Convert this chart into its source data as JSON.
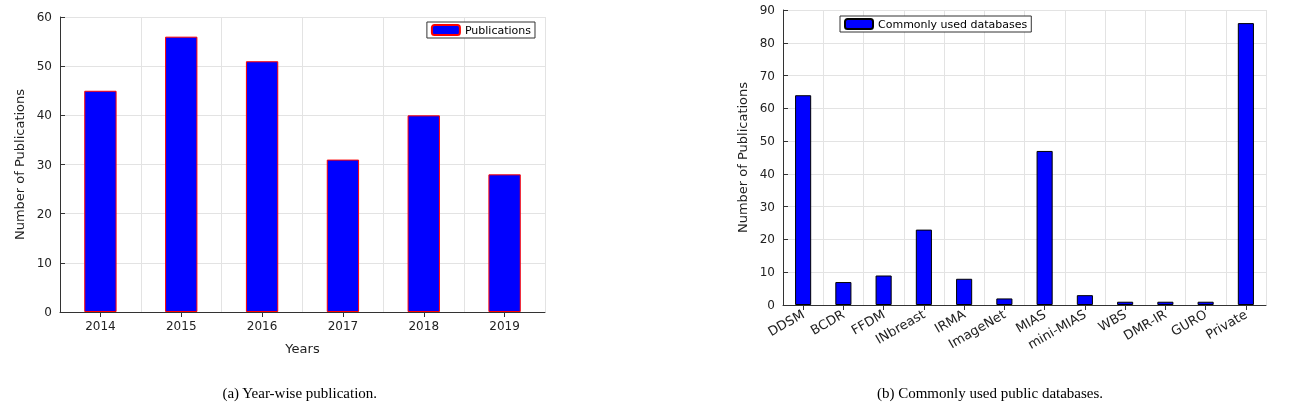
{
  "chart_data": [
    {
      "type": "bar",
      "xlabel": "Years",
      "ylabel": "Number of Publications",
      "categories": [
        "2014",
        "2015",
        "2016",
        "2017",
        "2018",
        "2019"
      ],
      "series": [
        {
          "name": "Publications",
          "color": "#0000ff",
          "values": [
            45,
            56,
            51,
            31,
            40,
            28
          ]
        }
      ],
      "ylim": [
        0,
        60
      ],
      "yticks": [
        0,
        10,
        20,
        30,
        40,
        50,
        60
      ],
      "grid": true,
      "legend": "top right",
      "annotations": [
        "(a) Year-wise publication."
      ]
    },
    {
      "type": "bar",
      "ylabel": "Number of Publications",
      "categories": [
        "DDSM",
        "BCDR",
        "FFDM",
        "INbreast",
        "IRMA",
        "ImageNet",
        "MIAS",
        "mini-MIAS",
        "WBS",
        "DMR-IR",
        "GURO",
        "Private"
      ],
      "series": [
        {
          "name": "Commonly used databases",
          "color": "#0000ff",
          "values": [
            64,
            7,
            9,
            23,
            8,
            2,
            47,
            3,
            1,
            1,
            1,
            86
          ]
        }
      ],
      "ylim": [
        0,
        90
      ],
      "yticks": [
        0,
        10,
        20,
        30,
        40,
        50,
        60,
        70,
        80,
        90
      ],
      "grid": true,
      "legend": "top",
      "annotations": [
        "(b) Commonly used public databases."
      ]
    }
  ]
}
